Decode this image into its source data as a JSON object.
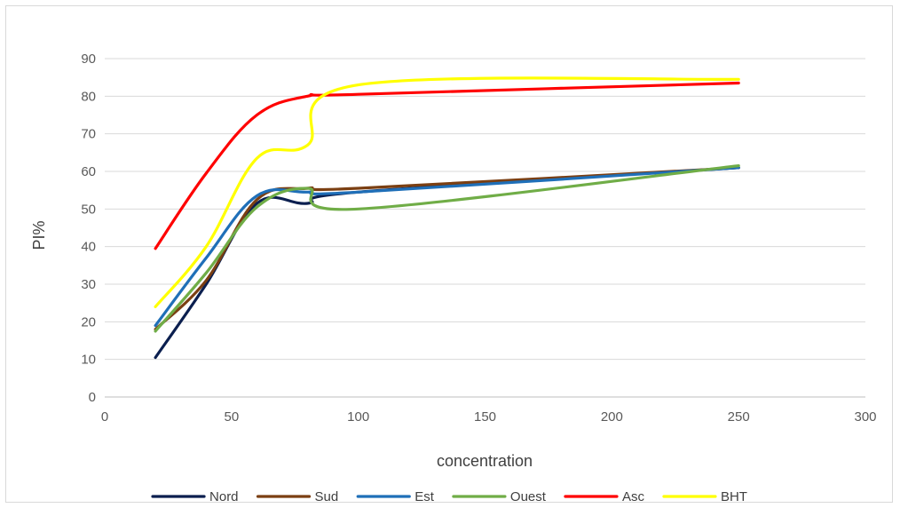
{
  "chart_data": {
    "type": "line",
    "title": "",
    "xlabel": "concentration",
    "ylabel": "PI%",
    "xlim": [
      0,
      300
    ],
    "ylim": [
      0,
      90
    ],
    "xticks": [
      0,
      50,
      100,
      150,
      200,
      250,
      300
    ],
    "yticks": [
      0,
      10,
      20,
      30,
      40,
      50,
      60,
      70,
      80,
      90
    ],
    "grid": "horizontal",
    "legend_position": "bottom",
    "smooth": true,
    "x": [
      20,
      40,
      60,
      80,
      100,
      250
    ],
    "series": [
      {
        "name": "Nord",
        "color": "#0b1f4f",
        "values": [
          10.5,
          30,
          51.5,
          51.5,
          54.5,
          61
        ]
      },
      {
        "name": "Sud",
        "color": "#7b3f12",
        "values": [
          18,
          31,
          52.5,
          55.5,
          55.5,
          61
        ]
      },
      {
        "name": "Est",
        "color": "#1f6fb8",
        "values": [
          19,
          37,
          53.5,
          54.5,
          54.5,
          61
        ]
      },
      {
        "name": "Ouest",
        "color": "#70ad47",
        "values": [
          17.5,
          33,
          50.5,
          55.5,
          50,
          61.5
        ]
      },
      {
        "name": "Asc",
        "color": "#ff0000",
        "values": [
          39.5,
          59.5,
          75,
          80,
          80.5,
          83.5
        ]
      },
      {
        "name": "BHT",
        "color": "#ffff00",
        "values": [
          24,
          40,
          63.5,
          67,
          83,
          84.5
        ]
      }
    ]
  }
}
